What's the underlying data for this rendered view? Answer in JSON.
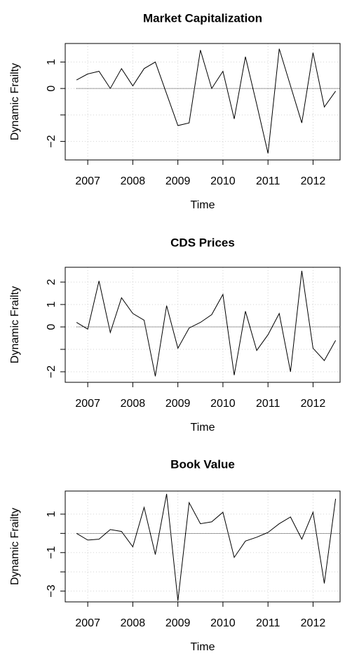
{
  "chart_data": [
    {
      "type": "line",
      "title": "Market Capitalization",
      "xlabel": "Time",
      "ylabel": "Dynamic Frailty",
      "x": [
        2006.75,
        2007,
        2007.25,
        2007.5,
        2007.75,
        2008,
        2008.25,
        2008.5,
        2008.75,
        2009,
        2009.25,
        2009.5,
        2009.75,
        2010,
        2010.25,
        2010.5,
        2010.75,
        2011,
        2011.25,
        2011.5,
        2011.75,
        2012,
        2012.25,
        2012.5
      ],
      "series": [
        {
          "color": "#000000",
          "values": [
            0.32,
            0.55,
            0.65,
            0.0,
            0.75,
            0.1,
            0.75,
            1.0,
            -0.2,
            -1.4,
            -1.3,
            1.45,
            0.0,
            0.65,
            -1.15,
            1.2,
            -0.6,
            -2.45,
            1.5,
            0.1,
            -1.3,
            1.35,
            -0.7,
            -0.1
          ]
        }
      ],
      "xlim": [
        2006.5,
        2012.6
      ],
      "xticks": [
        2007,
        2008,
        2009,
        2010,
        2011,
        2012
      ],
      "ylim": [
        -2.7,
        1.7
      ],
      "yticks": [
        {
          "value": -2,
          "label": "−2"
        },
        {
          "value": -1,
          "label": null
        },
        0,
        1
      ],
      "grid": true,
      "hline": 0
    },
    {
      "type": "line",
      "title": "CDS Prices",
      "xlabel": "Time",
      "ylabel": "Dynamic Frailty",
      "x": [
        2006.75,
        2007,
        2007.25,
        2007.5,
        2007.75,
        2008,
        2008.25,
        2008.5,
        2008.75,
        2009,
        2009.25,
        2009.5,
        2009.75,
        2010,
        2010.25,
        2010.5,
        2010.75,
        2011,
        2011.25,
        2011.5,
        2011.75,
        2012,
        2012.25,
        2012.5
      ],
      "series": [
        {
          "color": "#000000",
          "values": [
            0.2,
            -0.1,
            2.05,
            -0.25,
            1.3,
            0.6,
            0.3,
            -2.2,
            0.95,
            -0.95,
            -0.05,
            0.2,
            0.55,
            1.45,
            -2.15,
            0.7,
            -1.05,
            -0.35,
            0.6,
            -2.0,
            2.5,
            -0.95,
            -1.5,
            -0.6
          ]
        }
      ],
      "xlim": [
        2006.5,
        2012.6
      ],
      "xticks": [
        2007,
        2008,
        2009,
        2010,
        2011,
        2012
      ],
      "ylim": [
        -2.47,
        2.66
      ],
      "yticks": [
        {
          "value": -2,
          "label": "−2"
        },
        {
          "value": -1,
          "label": null
        },
        0,
        1,
        2
      ],
      "grid": true,
      "hline": 0
    },
    {
      "type": "line",
      "title": "Book Value",
      "xlabel": "Time",
      "ylabel": "Dynamic Frailty",
      "x": [
        2006.75,
        2007,
        2007.25,
        2007.5,
        2007.75,
        2008,
        2008.25,
        2008.5,
        2008.75,
        2009,
        2009.25,
        2009.5,
        2009.75,
        2010,
        2010.25,
        2010.5,
        2010.75,
        2011,
        2011.25,
        2011.5,
        2011.75,
        2012,
        2012.25,
        2012.5
      ],
      "series": [
        {
          "color": "#000000",
          "values": [
            0.0,
            -0.35,
            -0.3,
            0.2,
            0.1,
            -0.7,
            1.35,
            -1.1,
            2.05,
            -3.5,
            1.6,
            0.5,
            0.6,
            1.1,
            -1.25,
            -0.4,
            -0.2,
            0.05,
            0.5,
            0.85,
            -0.3,
            1.1,
            -2.6,
            1.8
          ]
        }
      ],
      "xlim": [
        2006.5,
        2012.6
      ],
      "xticks": [
        2007,
        2008,
        2009,
        2010,
        2011,
        2012
      ],
      "ylim": [
        -3.56,
        2.2
      ],
      "yticks": [
        {
          "value": -3,
          "label": "−3"
        },
        {
          "value": -2,
          "label": null
        },
        {
          "value": -1,
          "label": "−1"
        },
        {
          "value": 0,
          "label": null
        },
        1
      ],
      "grid": true,
      "hline": 0
    }
  ]
}
